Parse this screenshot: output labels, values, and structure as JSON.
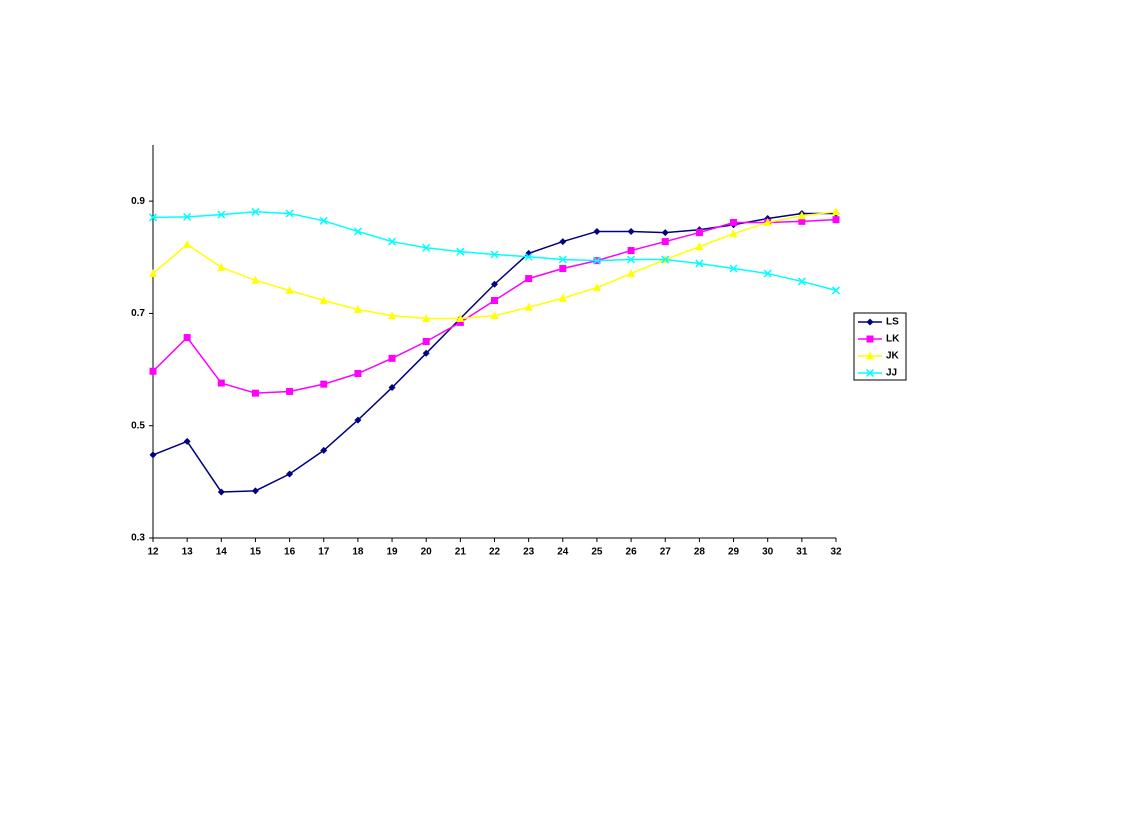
{
  "chart_data": {
    "type": "line",
    "x": [
      12,
      13,
      14,
      15,
      16,
      17,
      18,
      19,
      20,
      21,
      22,
      23,
      24,
      25,
      26,
      27,
      28,
      29,
      30,
      31,
      32
    ],
    "xlim": [
      12,
      32
    ],
    "xticks": [
      12,
      13,
      14,
      15,
      16,
      17,
      18,
      19,
      20,
      21,
      22,
      23,
      24,
      25,
      26,
      27,
      28,
      29,
      30,
      31,
      32
    ],
    "ylim": [
      0.3,
      1.0
    ],
    "yticks": [
      0.3,
      0.5,
      0.7,
      0.9
    ],
    "grid": false,
    "legend": "right",
    "series": [
      {
        "name": "LS",
        "color": "#000080",
        "marker": "diamond",
        "values": [
          0.448,
          0.472,
          0.382,
          0.384,
          0.414,
          0.456,
          0.51,
          0.568,
          0.629,
          0.691,
          0.752,
          0.807,
          0.828,
          0.846,
          0.846,
          0.844,
          0.849,
          0.858,
          0.869,
          0.878,
          0.878
        ]
      },
      {
        "name": "LK",
        "color": "#ff00ff",
        "marker": "square",
        "values": [
          0.597,
          0.657,
          0.576,
          0.558,
          0.561,
          0.574,
          0.593,
          0.62,
          0.65,
          0.684,
          0.723,
          0.762,
          0.78,
          0.794,
          0.812,
          0.828,
          0.844,
          0.862,
          0.862,
          0.864,
          0.867
        ]
      },
      {
        "name": "JK",
        "color": "#ffff00",
        "marker": "triangle",
        "values": [
          0.771,
          0.823,
          0.782,
          0.759,
          0.741,
          0.723,
          0.707,
          0.696,
          0.691,
          0.691,
          0.696,
          0.711,
          0.727,
          0.746,
          0.771,
          0.796,
          0.819,
          0.842,
          0.862,
          0.874,
          0.881
        ]
      },
      {
        "name": "JJ",
        "color": "#00ffff",
        "marker": "x",
        "values": [
          0.871,
          0.872,
          0.876,
          0.881,
          0.878,
          0.865,
          0.846,
          0.828,
          0.817,
          0.81,
          0.805,
          0.801,
          0.796,
          0.794,
          0.796,
          0.796,
          0.789,
          0.78,
          0.771,
          0.757,
          0.741
        ]
      }
    ]
  }
}
